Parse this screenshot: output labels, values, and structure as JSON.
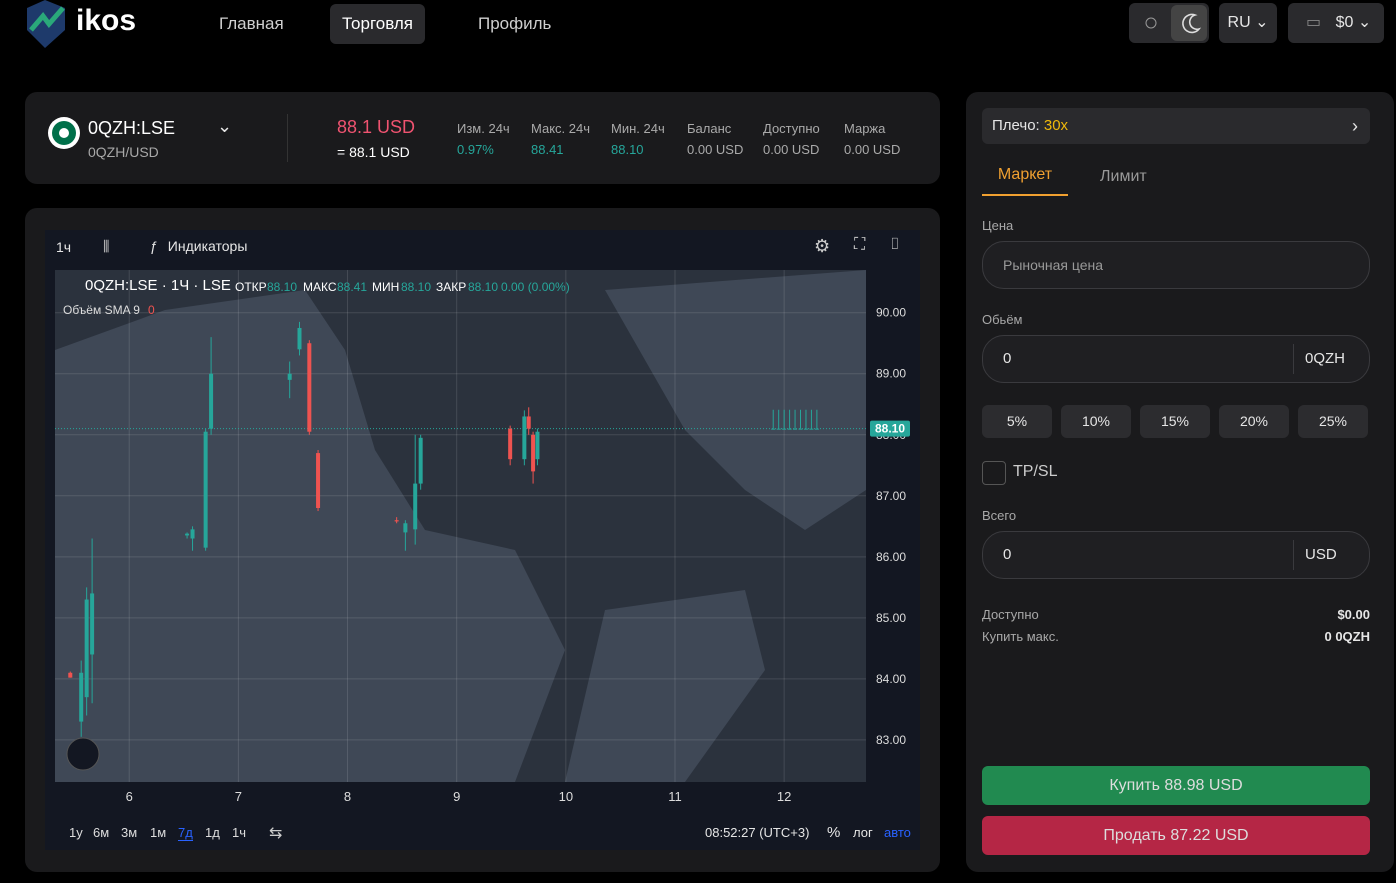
{
  "header": {
    "logo": "ikos",
    "nav": [
      "Главная",
      "Торговля",
      "Профиль"
    ],
    "language": "RU",
    "wallet": "$0"
  },
  "ticker": {
    "symbol": "0QZH:LSE",
    "pair": "0QZH/USD",
    "price": "88.1 USD",
    "price_alt": "= 88.1 USD",
    "stats": [
      {
        "label": "Изм. 24ч",
        "value": "0.97%"
      },
      {
        "label": "Макс. 24ч",
        "value": "88.41"
      },
      {
        "label": "Мин. 24ч",
        "value": "88.10"
      },
      {
        "label": "Баланс",
        "value": "0.00 USD"
      },
      {
        "label": "Доступно",
        "value": "0.00 USD"
      },
      {
        "label": "Маржа",
        "value": "0.00 USD"
      }
    ]
  },
  "chart_toolbar": {
    "interval": "1ч",
    "indicators": "Индикаторы"
  },
  "chart_data": {
    "type": "candlestick",
    "legend": {
      "title": "0QZH:LSE · 1Ч · LSE",
      "open_label": "ОТКР",
      "open": "88.10",
      "high_label": "МАКС",
      "high": "88.41",
      "low_label": "МИН",
      "low": "88.10",
      "close_label": "ЗАКР",
      "close": "88.10",
      "change": "0.00 (0.00%)",
      "volume": "Объём SMA 9",
      "volume_value": "0"
    },
    "x": [
      5.46,
      5.56,
      5.61,
      5.66,
      6.53,
      6.58,
      6.7,
      6.75,
      7.47,
      7.56,
      7.65,
      7.73,
      8.45,
      8.53,
      8.62,
      8.67,
      9.49,
      9.62,
      9.66,
      9.7,
      9.74,
      11.9,
      11.95,
      12.0,
      12.05,
      12.1,
      12.15,
      12.2,
      12.25,
      12.3
    ],
    "open": [
      84.1,
      83.3,
      83.7,
      84.4,
      86.35,
      86.3,
      86.15,
      88.1,
      88.9,
      89.4,
      89.5,
      87.7,
      86.6,
      86.4,
      86.45,
      87.2,
      88.1,
      87.6,
      88.3,
      88.0,
      87.6,
      88.1,
      88.1,
      88.1,
      88.1,
      88.1,
      88.1,
      88.1,
      88.1,
      88.1
    ],
    "high": [
      84.12,
      84.3,
      85.5,
      86.3,
      86.4,
      86.5,
      88.1,
      89.6,
      89.2,
      89.85,
      89.55,
      87.75,
      86.65,
      86.6,
      88.0,
      88.0,
      88.15,
      88.4,
      88.45,
      88.05,
      88.1,
      88.41,
      88.41,
      88.41,
      88.41,
      88.41,
      88.41,
      88.41,
      88.41,
      88.41
    ],
    "low": [
      84.02,
      83.05,
      83.4,
      83.6,
      86.3,
      86.1,
      86.1,
      88.0,
      88.6,
      89.3,
      88.0,
      86.75,
      86.55,
      86.1,
      86.2,
      87.1,
      87.5,
      87.5,
      88.0,
      87.2,
      87.5,
      88.1,
      88.1,
      88.1,
      88.1,
      88.1,
      88.1,
      88.1,
      88.1,
      88.1
    ],
    "close": [
      84.02,
      84.1,
      85.3,
      85.4,
      86.38,
      86.45,
      88.05,
      89.0,
      89.0,
      89.75,
      88.05,
      86.8,
      86.58,
      86.55,
      87.2,
      87.95,
      87.6,
      88.3,
      88.1,
      87.4,
      88.05,
      88.1,
      88.1,
      88.1,
      88.1,
      88.1,
      88.1,
      88.1,
      88.1,
      88.1
    ],
    "up_color": "#26a69a",
    "down_color": "#ef5350",
    "xlim": [
      5.32,
      12.75
    ],
    "xticks": [
      6,
      7,
      8,
      9,
      10,
      11,
      12
    ],
    "ylim": [
      82.31,
      90.7
    ],
    "yticks": [
      {
        "value": 83,
        "label": "83.00"
      },
      {
        "value": 84,
        "label": "84.00"
      },
      {
        "value": 85,
        "label": "85.00"
      },
      {
        "value": 86,
        "label": "86.00"
      },
      {
        "value": 87,
        "label": "87.00"
      },
      {
        "value": 88,
        "label": "88.00"
      },
      {
        "value": 89,
        "label": "89.00"
      },
      {
        "value": 90,
        "label": "90.00"
      }
    ],
    "last_price": {
      "value": 88.1,
      "label": "88.10"
    },
    "grid": true
  },
  "chart_footer": {
    "ranges": [
      "1у",
      "6м",
      "3м",
      "1м",
      "7д",
      "1д",
      "1ч"
    ],
    "time": "08:52:27 (UTC+3)",
    "percent": "%",
    "log": "лог",
    "auto": "авто"
  },
  "order_panel": {
    "leverage_label": "Плечо:",
    "leverage": "30x",
    "tabs": [
      "Маркет",
      "Лимит"
    ],
    "price_label": "Цена",
    "price_placeholder": "Рыночная цена",
    "volume_label": "Обьём",
    "volume_value": "0",
    "volume_unit": "0QZH",
    "percents": [
      "5%",
      "10%",
      "15%",
      "20%",
      "25%"
    ],
    "tpsl": "TP/SL",
    "total_label": "Всего",
    "total_value": "0",
    "total_unit": "USD",
    "available_label": "Доступно",
    "available": "$0.00",
    "max_buy_label": "Купить макс.",
    "max_buy": "0 0QZH",
    "buy": "Купить 88.98 USD",
    "sell": "Продать 87.22 USD"
  }
}
